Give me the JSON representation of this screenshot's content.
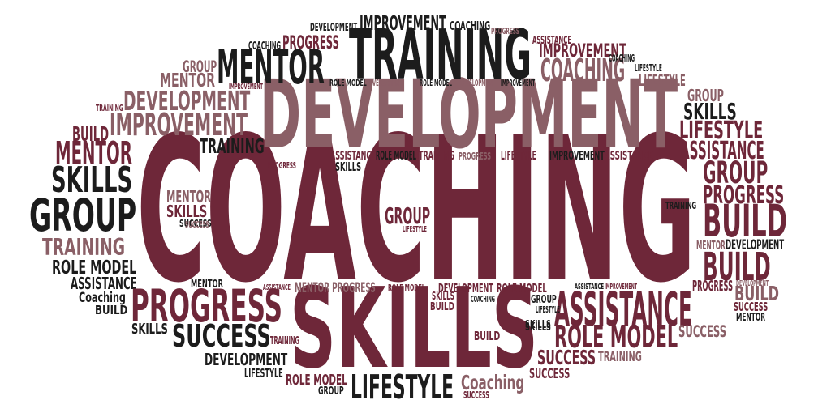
{
  "colors": {
    "black": "#1c1c1c",
    "maroon": "#6e2739",
    "mauve": "#8a5f66"
  },
  "words": [
    {
      "id": "w-coaching-main",
      "text": "COACHING",
      "color": "maroon"
    },
    {
      "id": "w-skills-main",
      "text": "SKILLS",
      "color": "maroon"
    },
    {
      "id": "w-development-main",
      "text": "DEVELOPMENT",
      "color": "mauve"
    },
    {
      "id": "w-training-top",
      "text": "TRAINING",
      "color": "black"
    },
    {
      "id": "w-mentor-top",
      "text": "MENTOR",
      "color": "black"
    },
    {
      "id": "w-improvement-top",
      "text": "IMPROVEMENT",
      "color": "black"
    },
    {
      "id": "w-development-top-small",
      "text": "DEVELOPMENT",
      "color": "black"
    },
    {
      "id": "w-coaching-top-small",
      "text": "COACHING",
      "color": "black"
    },
    {
      "id": "w-progress-top-small",
      "text": "PROGRESS",
      "color": "mauve"
    },
    {
      "id": "w-coaching-top-left",
      "text": "COACHING",
      "color": "black"
    },
    {
      "id": "w-progress-top-left",
      "text": "PROGRESS",
      "color": "maroon"
    },
    {
      "id": "w-group-top-left",
      "text": "GROUP",
      "color": "mauve"
    },
    {
      "id": "w-mentor-left",
      "text": "MENTOR",
      "color": "mauve"
    },
    {
      "id": "w-improvement-tiny",
      "text": "IMPROVEMENT",
      "color": "maroon"
    },
    {
      "id": "w-development-left",
      "text": "DEVELOPMENT",
      "color": "mauve"
    },
    {
      "id": "w-training-left-tiny",
      "text": "TRAINING",
      "color": "maroon"
    },
    {
      "id": "w-improvement-left",
      "text": "IMPROVEMENT",
      "color": "mauve"
    },
    {
      "id": "w-build-left",
      "text": "BUILD",
      "color": "maroon"
    },
    {
      "id": "w-mentor-left-2",
      "text": "MENTOR",
      "color": "maroon"
    },
    {
      "id": "w-training-mid-left",
      "text": "TRAINING",
      "color": "black"
    },
    {
      "id": "w-skills-left",
      "text": "SKILLS",
      "color": "black"
    },
    {
      "id": "w-group-left",
      "text": "GROUP",
      "color": "black"
    },
    {
      "id": "w-training-left-2",
      "text": "TRAINING",
      "color": "mauve"
    },
    {
      "id": "w-role-model-left",
      "text": "ROLE MODEL",
      "color": "black"
    },
    {
      "id": "w-assistance-left",
      "text": "ASSISTANCE",
      "color": "black"
    },
    {
      "id": "w-coaching-left-small",
      "text": "Coaching",
      "color": "black"
    },
    {
      "id": "w-build-left-small",
      "text": "BUILD",
      "color": "black"
    },
    {
      "id": "w-skills-left-small",
      "text": "SKILLS",
      "color": "black"
    },
    {
      "id": "w-mentor-left-3",
      "text": "MENTOR",
      "color": "mauve"
    },
    {
      "id": "w-skills-left-3",
      "text": "SKILLS",
      "color": "maroon"
    },
    {
      "id": "w-success-left-tiny",
      "text": "SUCCESS",
      "color": "black"
    },
    {
      "id": "w-role-model-row",
      "text": "ROLE MODEL",
      "color": "black"
    },
    {
      "id": "w-development-row",
      "text": "DEVELOPMENT",
      "color": "mauve"
    },
    {
      "id": "w-development-row-2",
      "text": "DEVELOPMENT",
      "color": "mauve"
    },
    {
      "id": "w-role-model-row-2",
      "text": "ROLE MODEL",
      "color": "black"
    },
    {
      "id": "w-improvement-row",
      "text": "IMPROVEMENT",
      "color": "black"
    },
    {
      "id": "w-assistance-row",
      "text": "ASSISTANCE",
      "color": "maroon"
    },
    {
      "id": "w-role-model-row-3",
      "text": "ROLE MODEL",
      "color": "black"
    },
    {
      "id": "w-training-row",
      "text": "TRAINING",
      "color": "maroon"
    },
    {
      "id": "w-progress-row",
      "text": "PROGRESS",
      "color": "mauve"
    },
    {
      "id": "w-lifestyle-row",
      "text": "LIFESTYLE",
      "color": "maroon"
    },
    {
      "id": "w-improvement-row-2",
      "text": "IMPROVEMENT",
      "color": "black"
    },
    {
      "id": "w-assistance-row-2",
      "text": "ASSISTANCE",
      "color": "maroon"
    },
    {
      "id": "w-progress-left-tiny",
      "text": "PROGRESS",
      "color": "maroon"
    },
    {
      "id": "w-skills-tiny",
      "text": "SKILLS",
      "color": "black"
    },
    {
      "id": "w-group-mid",
      "text": "GROUP",
      "color": "maroon"
    },
    {
      "id": "w-lifestyle-tiny",
      "text": "LIFESTYLE",
      "color": "maroon"
    },
    {
      "id": "w-assistance-top-right",
      "text": "ASSISTANCE",
      "color": "maroon"
    },
    {
      "id": "w-improvement-top-right",
      "text": "IMPROVEMENT",
      "color": "maroon"
    },
    {
      "id": "w-coaching-top-right",
      "text": "COACHING",
      "color": "mauve"
    },
    {
      "id": "w-coaching-top-right-tiny",
      "text": "COACHING",
      "color": "black"
    },
    {
      "id": "w-lifestyle-top-right",
      "text": "LIFESTYLE",
      "color": "black"
    },
    {
      "id": "w-lifestyle-top-right-2",
      "text": "LIFESTYLE",
      "color": "mauve"
    },
    {
      "id": "w-group-right",
      "text": "GROUP",
      "color": "mauve"
    },
    {
      "id": "w-skills-right",
      "text": "SKILLS",
      "color": "black"
    },
    {
      "id": "w-lifestyle-right",
      "text": "LIFESTYLE",
      "color": "maroon"
    },
    {
      "id": "w-assistance-right",
      "text": "ASSISTANCE",
      "color": "maroon"
    },
    {
      "id": "w-group-right-2",
      "text": "GROUP",
      "color": "maroon"
    },
    {
      "id": "w-progress-right",
      "text": "PROGRESS",
      "color": "maroon"
    },
    {
      "id": "w-training-right-tiny",
      "text": "TRAINING",
      "color": "black"
    },
    {
      "id": "w-build-right",
      "text": "BUILD",
      "color": "maroon"
    },
    {
      "id": "w-mentor-right",
      "text": "MENTOR",
      "color": "mauve"
    },
    {
      "id": "w-development-right",
      "text": "DEVELOPMENT",
      "color": "black"
    },
    {
      "id": "w-build-right-2",
      "text": "BUILD",
      "color": "maroon"
    },
    {
      "id": "w-progress-right-2",
      "text": "PROGRESS",
      "color": "maroon"
    },
    {
      "id": "w-development-right-tiny",
      "text": "DEVELOPMENT",
      "color": "mauve"
    },
    {
      "id": "w-assistance-tiny",
      "text": "ASSISTANCE",
      "color": "black"
    },
    {
      "id": "w-improvement-tiny-2",
      "text": "IMPROVEMENT",
      "color": "maroon"
    },
    {
      "id": "w-build-right-3",
      "text": "BUILD",
      "color": "mauve"
    },
    {
      "id": "w-success-right-tiny",
      "text": "SUCCESS",
      "color": "maroon"
    },
    {
      "id": "w-mentor-right-tiny",
      "text": "MENTOR",
      "color": "black"
    },
    {
      "id": "w-assistance-right-big",
      "text": "ASSISTANCE",
      "color": "maroon"
    },
    {
      "id": "w-role-model-right",
      "text": "ROLE MODEL",
      "color": "maroon"
    },
    {
      "id": "w-success-right",
      "text": "SUCCESS",
      "color": "mauve"
    },
    {
      "id": "w-success-lower-right",
      "text": "SUCCESS",
      "color": "maroon"
    },
    {
      "id": "w-training-lower-right",
      "text": "TRAINING",
      "color": "mauve"
    },
    {
      "id": "w-success-lower-right-2",
      "text": "SUCCESS",
      "color": "maroon"
    },
    {
      "id": "w-skills-lower-tiny",
      "text": "SKILLS",
      "color": "black"
    },
    {
      "id": "w-build-lower",
      "text": "BUILD",
      "color": "maroon"
    },
    {
      "id": "w-coaching-bottom",
      "text": "Coaching",
      "color": "mauve"
    },
    {
      "id": "w-success-bottom-tiny",
      "text": "SUCCESS",
      "color": "maroon"
    },
    {
      "id": "w-lifestyle-bottom",
      "text": "LIFESTYLE",
      "color": "black"
    },
    {
      "id": "w-role-model-bottom",
      "text": "ROLE MODEL",
      "color": "maroon"
    },
    {
      "id": "w-group-bottom",
      "text": "GROUP",
      "color": "black"
    },
    {
      "id": "w-lifestyle-bottom-left",
      "text": "LIFESTYLE",
      "color": "black"
    },
    {
      "id": "w-development-bottom",
      "text": "DEVELOPMENT",
      "color": "black"
    },
    {
      "id": "w-success-bottom",
      "text": "SUCCESS",
      "color": "black"
    },
    {
      "id": "w-training-bottom-tiny",
      "text": "TRAINING",
      "color": "maroon"
    },
    {
      "id": "w-progress-lower",
      "text": "PROGRESS",
      "color": "maroon"
    },
    {
      "id": "w-mentor-lower",
      "text": "MENTOR",
      "color": "black"
    },
    {
      "id": "w-assistance-lower-tiny",
      "text": "ASSISTANCE",
      "color": "maroon"
    },
    {
      "id": "w-mentor-progress",
      "text": "MENTOR PROGRESS",
      "color": "mauve"
    },
    {
      "id": "w-role-model-lower",
      "text": "ROLE MODEL",
      "color": "maroon"
    },
    {
      "id": "w-development-lower",
      "text": "DEVELOPMENT",
      "color": "maroon"
    },
    {
      "id": "w-role-model-lower-2",
      "text": "ROLE MODEL",
      "color": "maroon"
    },
    {
      "id": "w-skills-lower-small",
      "text": "SKILLS",
      "color": "maroon"
    },
    {
      "id": "w-build-lower-small",
      "text": "BUILD",
      "color": "maroon"
    },
    {
      "id": "w-coaching-lower-tiny",
      "text": "COACHING",
      "color": "black"
    },
    {
      "id": "w-group-lower-small",
      "text": "GROUP",
      "color": "black"
    },
    {
      "id": "w-lifestyle-lower-tiny",
      "text": "LIFESTYLE",
      "color": "black"
    },
    {
      "id": "w-skills-lower-2",
      "text": "SKILLS",
      "color": "black"
    },
    {
      "id": "w-success-mid-tiny",
      "text": "SUCCESS",
      "color": "mauve"
    }
  ]
}
